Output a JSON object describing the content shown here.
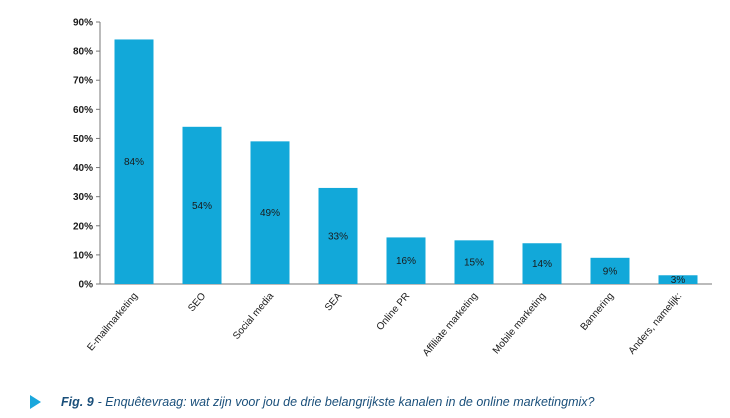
{
  "chart_data": {
    "type": "bar",
    "categories": [
      "E-mailmarketing",
      "SEO",
      "Social media",
      "SEA",
      "Online PR",
      "Affiliate marketing",
      "Mobile marketing",
      "Bannering",
      "Anders, namelijk:"
    ],
    "values": [
      84,
      54,
      49,
      33,
      16,
      15,
      14,
      9,
      3
    ],
    "data_labels": [
      "84%",
      "54%",
      "49%",
      "33%",
      "16%",
      "15%",
      "14%",
      "9%",
      "3%"
    ],
    "y_ticks": [
      "0%",
      "10%",
      "20%",
      "30%",
      "40%",
      "50%",
      "60%",
      "70%",
      "80%",
      "90%"
    ],
    "ylim": [
      0,
      90
    ],
    "xlabel": "",
    "ylabel": "",
    "grid": false,
    "bar_color": "#12a8d9"
  },
  "caption": {
    "fig_label": "Fig. 9",
    "text": "- Enquêtevraag: wat zijn voor jou de drie belangrijkste kanalen in de online marketingmix?",
    "icon": "play-icon",
    "color": "#1a4f7a",
    "icon_color": "#1aa7dc"
  }
}
